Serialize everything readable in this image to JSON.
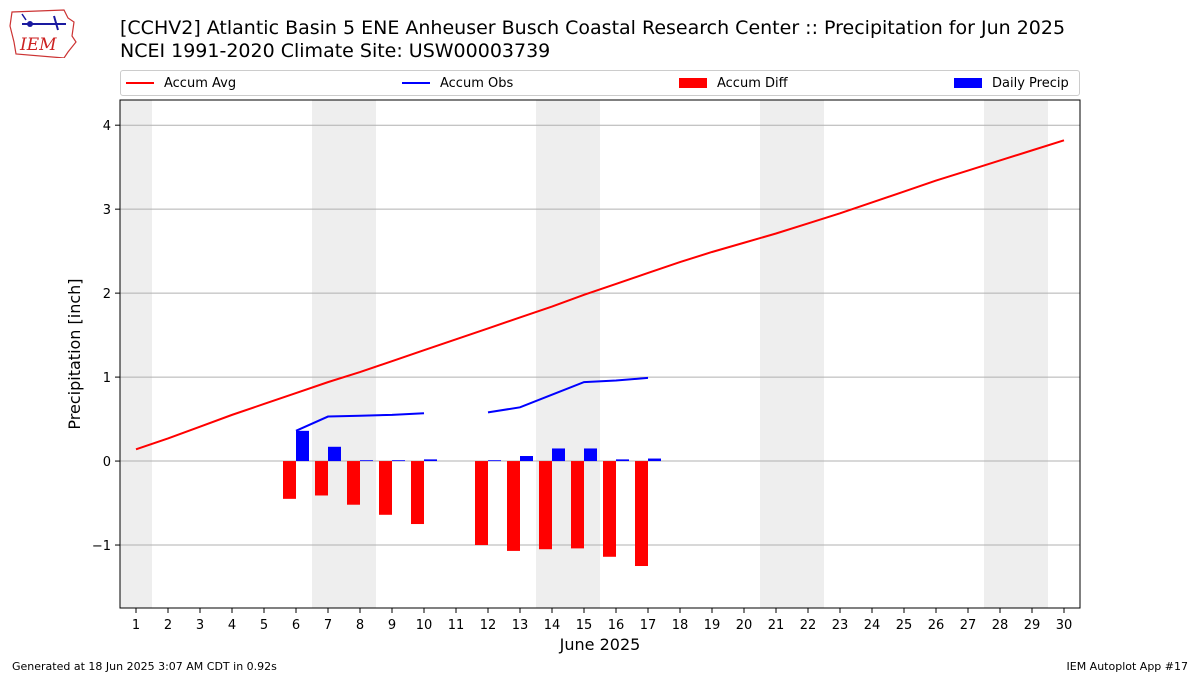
{
  "header": {
    "title_line1": "[CCHV2] Atlantic Basin 5 ENE Anheuser Busch Coastal Research Center :: Precipitation for Jun 2025",
    "title_line2": "NCEI 1991-2020 Climate Site: USW00003739",
    "logo_text": "IEM"
  },
  "legend": {
    "items": [
      {
        "label": "Accum Avg",
        "kind": "line",
        "color": "#ff0000"
      },
      {
        "label": "Accum Obs",
        "kind": "line",
        "color": "#0000ff"
      },
      {
        "label": "Accum Diff",
        "kind": "bar",
        "color": "#ff0000"
      },
      {
        "label": "Daily Precip",
        "kind": "bar",
        "color": "#0000ff"
      }
    ]
  },
  "footer": {
    "generated": "Generated at 18 Jun 2025 3:07 AM CDT in 0.92s",
    "app": "IEM Autoplot App #17"
  },
  "chart_data": {
    "type": "bar",
    "xlabel": "June 2025",
    "ylabel": "Precipitation [inch]",
    "xlim": [
      0.5,
      30.5
    ],
    "ylim": [
      -1.75,
      4.3
    ],
    "yticks": [
      -1,
      0,
      1,
      2,
      3,
      4
    ],
    "ytick_labels": [
      "−1",
      "0",
      "1",
      "2",
      "3",
      "4"
    ],
    "xticks": [
      1,
      2,
      3,
      4,
      5,
      6,
      7,
      8,
      9,
      10,
      11,
      12,
      13,
      14,
      15,
      16,
      17,
      18,
      19,
      20,
      21,
      22,
      23,
      24,
      25,
      26,
      27,
      28,
      29,
      30
    ],
    "grid": "horizontal",
    "weekend_shading": [
      [
        0.5,
        1.5
      ],
      [
        6.5,
        8.5
      ],
      [
        13.5,
        15.5
      ],
      [
        20.5,
        22.5
      ],
      [
        27.5,
        29.5
      ]
    ],
    "series": [
      {
        "name": "Accum Avg",
        "kind": "line",
        "color": "#ff0000",
        "x": [
          1,
          2,
          3,
          4,
          5,
          6,
          7,
          8,
          9,
          10,
          11,
          12,
          13,
          14,
          15,
          16,
          17,
          18,
          19,
          20,
          21,
          22,
          23,
          24,
          25,
          26,
          27,
          28,
          29,
          30
        ],
        "values": [
          0.14,
          0.27,
          0.41,
          0.55,
          0.68,
          0.81,
          0.94,
          1.06,
          1.19,
          1.32,
          1.45,
          1.58,
          1.71,
          1.84,
          1.98,
          2.11,
          2.24,
          2.37,
          2.49,
          2.6,
          2.71,
          2.83,
          2.95,
          3.08,
          3.21,
          3.34,
          3.46,
          3.58,
          3.7,
          3.82
        ]
      },
      {
        "name": "Accum Obs",
        "kind": "line",
        "color": "#0000ff",
        "x": [
          6,
          7,
          8,
          9,
          10,
          11,
          12,
          13,
          14,
          15,
          16,
          17
        ],
        "values": [
          0.36,
          0.53,
          0.54,
          0.55,
          0.57,
          null,
          0.58,
          0.64,
          0.79,
          0.94,
          0.96,
          0.99
        ]
      },
      {
        "name": "Accum Diff",
        "kind": "bar",
        "color": "#ff0000",
        "x": [
          6,
          7,
          8,
          9,
          10,
          12,
          13,
          14,
          15,
          16,
          17
        ],
        "values": [
          -0.45,
          -0.41,
          -0.52,
          -0.64,
          -0.75,
          -1.0,
          -1.07,
          -1.05,
          -1.04,
          -1.14,
          -1.25
        ]
      },
      {
        "name": "Daily Precip",
        "kind": "bar",
        "color": "#0000ff",
        "x": [
          6,
          7,
          8,
          9,
          10,
          12,
          13,
          14,
          15,
          16,
          17
        ],
        "values": [
          0.36,
          0.17,
          0.01,
          0.01,
          0.02,
          0.01,
          0.06,
          0.15,
          0.15,
          0.02,
          0.03
        ]
      }
    ]
  }
}
